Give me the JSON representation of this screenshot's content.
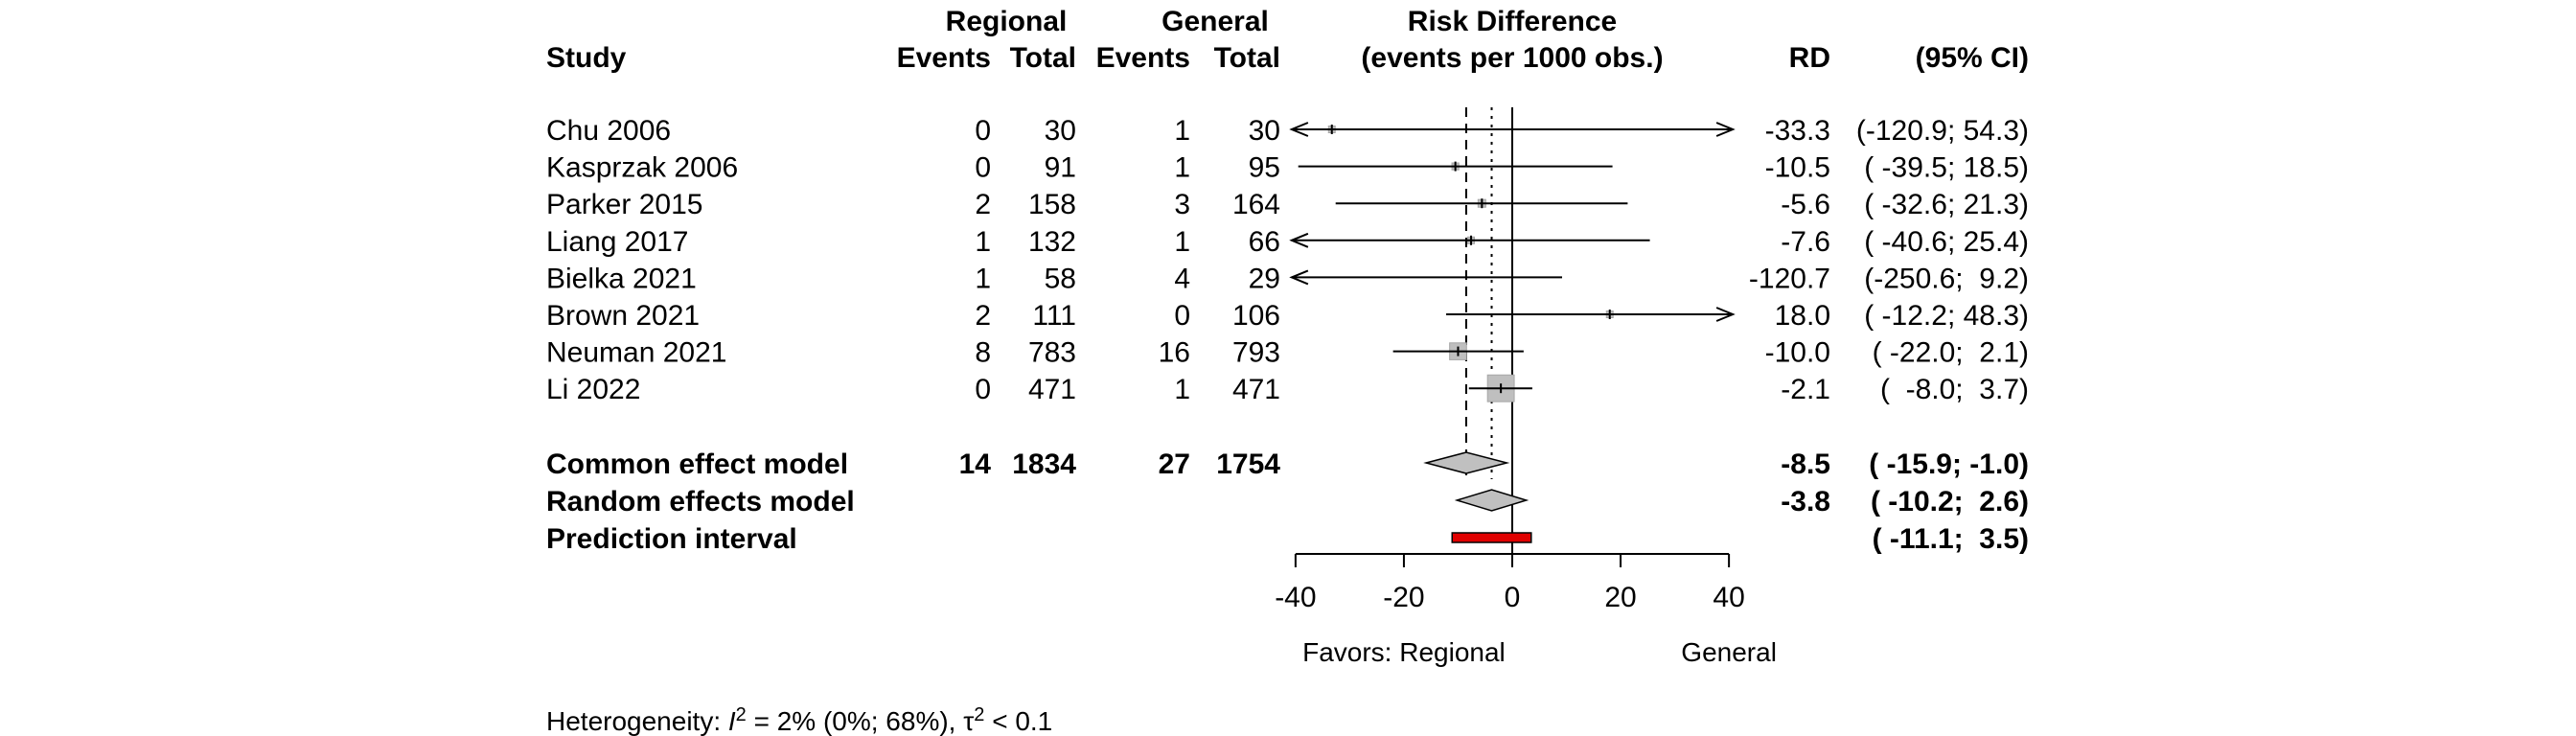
{
  "headers": {
    "study": "Study",
    "regional": "Regional",
    "general": "General",
    "events": "Events",
    "total": "Total",
    "effect_line1": "Risk Difference",
    "effect_line2": "(events per 1000 obs.)",
    "rd": "RD",
    "ci": "(95% CI)"
  },
  "chart_data": {
    "type": "forest",
    "xlim": [
      -40,
      40
    ],
    "x_ticks": [
      -40,
      -20,
      0,
      20,
      40
    ],
    "x_tick_labels": [
      "-40",
      "-20",
      "0",
      "20",
      "40"
    ],
    "null_value": 0,
    "favors_left": "Favors: Regional",
    "favors_right": "General",
    "studies": [
      {
        "name": "Chu 2006",
        "r_events": "0",
        "r_total": "30",
        "g_events": "1",
        "g_total": "30",
        "rd": -33.3,
        "lower": -120.9,
        "upper": 54.3,
        "weight": 0.005,
        "rd_text": "-33.3",
        "ci_text": "(-120.9; 54.3)"
      },
      {
        "name": "Kasprzak 2006",
        "r_events": "0",
        "r_total": "91",
        "g_events": "1",
        "g_total": "95",
        "rd": -10.5,
        "lower": -39.5,
        "upper": 18.5,
        "weight": 0.04,
        "rd_text": "-10.5",
        "ci_text": "( -39.5; 18.5)"
      },
      {
        "name": "Parker 2015",
        "r_events": "2",
        "r_total": "158",
        "g_events": "3",
        "g_total": "164",
        "rd": -5.6,
        "lower": -32.6,
        "upper": 21.3,
        "weight": 0.05,
        "rd_text": "-5.6",
        "ci_text": "( -32.6; 21.3)"
      },
      {
        "name": "Liang 2017",
        "r_events": "1",
        "r_total": "132",
        "g_events": "1",
        "g_total": "66",
        "rd": -7.6,
        "lower": -40.6,
        "upper": 25.4,
        "weight": 0.03,
        "rd_text": "-7.6",
        "ci_text": "( -40.6; 25.4)"
      },
      {
        "name": "Bielka 2021",
        "r_events": "1",
        "r_total": "58",
        "g_events": "4",
        "g_total": "29",
        "rd": -120.7,
        "lower": -250.6,
        "upper": 9.2,
        "weight": 0.002,
        "rd_text": "-120.7",
        "ci_text": "(-250.6;  9.2)"
      },
      {
        "name": "Brown 2021",
        "r_events": "2",
        "r_total": "111",
        "g_events": "0",
        "g_total": "106",
        "rd": 18.0,
        "lower": -12.2,
        "upper": 48.3,
        "weight": 0.03,
        "rd_text": "18.0",
        "ci_text": "( -12.2; 48.3)"
      },
      {
        "name": "Neuman 2021",
        "r_events": "8",
        "r_total": "783",
        "g_events": "16",
        "g_total": "793",
        "rd": -10.0,
        "lower": -22.0,
        "upper": 2.1,
        "weight": 0.24,
        "rd_text": "-10.0",
        "ci_text": "( -22.0;  2.1)"
      },
      {
        "name": "Li 2022",
        "r_events": "0",
        "r_total": "471",
        "g_events": "1",
        "g_total": "471",
        "rd": -2.1,
        "lower": -8.0,
        "upper": 3.7,
        "weight": 0.6,
        "rd_text": "-2.1",
        "ci_text": "(  -8.0;  3.7)"
      }
    ],
    "common": {
      "name": "Common effect model",
      "r_events": "14",
      "r_total": "1834",
      "g_events": "27",
      "g_total": "1754",
      "rd": -8.5,
      "lower": -15.9,
      "upper": -1.0,
      "rd_text": "-8.5",
      "ci_text": "( -15.9; -1.0)"
    },
    "random": {
      "name": "Random effects model",
      "rd": -3.8,
      "lower": -10.2,
      "upper": 2.6,
      "rd_text": "-3.8",
      "ci_text": "( -10.2;  2.6)"
    },
    "prediction": {
      "name": "Prediction interval",
      "lower": -11.1,
      "upper": 3.5,
      "ci_text": "( -11.1;  3.5)"
    },
    "heterogeneity": {
      "prefix": "Heterogeneity: ",
      "i2_symbol": "I",
      "i2_rest": " = 2% (0%; 68%), ",
      "tau_symbol": "τ",
      "tau_rest": " < 0.1"
    },
    "colors": {
      "box": "#bfbfbf",
      "box_border": "#a6a6a6",
      "diamond": "#c0c0c0",
      "prediction": "#e00000",
      "line": "#000000"
    }
  }
}
